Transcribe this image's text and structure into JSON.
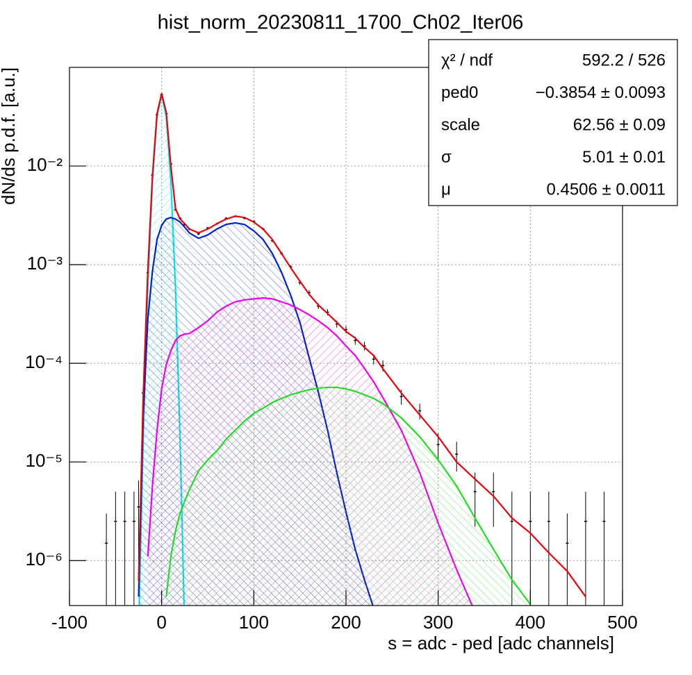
{
  "chart_data": {
    "type": "line",
    "title": "hist_norm_20230811_1700_Ch02_Iter06",
    "x_label": "s = adc - ped [adc channels]",
    "y_label": "dN/ds p.d.f. [a.u.]",
    "log_y": true,
    "grid": true,
    "xlim": [
      -100,
      500
    ],
    "xticks": [
      -100,
      0,
      100,
      200,
      300,
      400,
      500
    ],
    "ylim": [
      3.5e-07,
      0.1
    ],
    "yticks": [
      {
        "value": 1e-06,
        "label": "10⁻⁶"
      },
      {
        "value": 1e-05,
        "label": "10⁻⁵"
      },
      {
        "value": 0.0001,
        "label": "10⁻⁴"
      },
      {
        "value": 0.001,
        "label": "10⁻³"
      },
      {
        "value": 0.01,
        "label": "10⁻²"
      }
    ],
    "x": [
      -60,
      -50,
      -40,
      -30,
      -25,
      -20,
      -15,
      -10,
      -5,
      0,
      5,
      10,
      15,
      20,
      25,
      30,
      40,
      50,
      60,
      70,
      80,
      90,
      100,
      110,
      120,
      130,
      140,
      150,
      160,
      170,
      180,
      190,
      200,
      210,
      220,
      230,
      240,
      260,
      280,
      300,
      320,
      340,
      360,
      380,
      400,
      420,
      440,
      460,
      480
    ],
    "series": [
      {
        "style": "data",
        "color": "#000000",
        "values": [
          1.5e-06,
          2.5e-06,
          2.5e-06,
          2.5e-06,
          3.5e-06,
          5e-05,
          0.00083,
          0.0081,
          0.033,
          0.053,
          0.034,
          0.0105,
          0.0036,
          0.00295,
          0.00255,
          0.0023,
          0.00205,
          0.00235,
          0.0026,
          0.00295,
          0.0031,
          0.00295,
          0.00275,
          0.0023,
          0.00175,
          0.0013,
          0.00095,
          0.00066,
          0.00052,
          0.00038,
          0.00033,
          0.00025,
          0.00022,
          0.00017,
          0.00015,
          0.00011,
          9.5e-05,
          4.6e-05,
          3.3e-05,
          1.5e-05,
          1.2e-05,
          5e-06,
          5e-06,
          2.5e-06,
          2.5e-06,
          2.5e-06,
          1.5e-06,
          2.5e-06,
          2.5e-06
        ],
        "errors": [
          1.5e-06,
          2.5e-06,
          2.5e-06,
          2.5e-06,
          3e-06,
          8e-06,
          3e-05,
          0.00015,
          0.0003,
          0.0004,
          0.0003,
          0.00016,
          9e-05,
          8e-05,
          7e-05,
          7e-05,
          6e-05,
          7e-05,
          7e-05,
          8e-05,
          8e-05,
          8e-05,
          8e-05,
          7e-05,
          6e-05,
          5e-05,
          4e-05,
          3.5e-05,
          3e-05,
          2.5e-05,
          2.4e-05,
          2e-05,
          1.9e-05,
          1.6e-05,
          1.5e-05,
          1.3e-05,
          1.2e-05,
          8e-06,
          6e-06,
          4.5e-06,
          4e-06,
          2.8e-06,
          2.8e-06,
          2.5e-06,
          2.5e-06,
          2.5e-06,
          1.5e-06,
          2.5e-06,
          2.5e-06
        ]
      },
      {
        "style": "component",
        "color": "#00e5ee",
        "values": [
          null,
          null,
          null,
          null,
          1.9e-07,
          1.7e-05,
          0.00058,
          0.007,
          0.032,
          0.052,
          0.032,
          0.007,
          0.00058,
          1.7e-05,
          1.9e-07,
          null,
          null,
          null,
          null,
          null,
          null,
          null,
          null,
          null,
          null,
          null,
          null,
          null,
          null,
          null,
          null,
          null,
          null,
          null,
          null,
          null,
          null,
          null,
          null,
          null,
          null,
          null,
          null,
          null,
          null,
          null,
          null,
          null,
          null
        ]
      },
      {
        "style": "component",
        "color": "#0022cc",
        "values": [
          null,
          null,
          null,
          null,
          4.3e-07,
          2.9e-05,
          0.00028,
          0.00086,
          0.0018,
          0.0025,
          0.0029,
          0.003,
          0.0029,
          0.0027,
          0.0024,
          0.0021,
          0.00185,
          0.002,
          0.0023,
          0.00256,
          0.00265,
          0.00255,
          0.0022,
          0.0018,
          0.0013,
          0.00084,
          0.00049,
          0.00026,
          0.000114,
          5.1e-05,
          2.1e-05,
          7.8e-06,
          3.1e-06,
          1.3e-06,
          6.4e-07,
          3.3e-07,
          null,
          null,
          null,
          null,
          null,
          null,
          null,
          null,
          null,
          null,
          null,
          null,
          null
        ]
      },
      {
        "style": "component",
        "color": "#ee00ee",
        "values": [
          null,
          null,
          null,
          null,
          null,
          null,
          1.1e-06,
          5.7e-06,
          2.1e-05,
          5.5e-05,
          9.7e-05,
          0.000134,
          0.00017,
          0.00019,
          0.000198,
          0.0002,
          0.00023,
          0.00027,
          0.00033,
          0.00038,
          0.00042,
          0.00044,
          0.00045,
          0.00046,
          0.00045,
          0.00042,
          0.00039,
          0.00035,
          0.00031,
          0.00027,
          0.00023,
          0.00019,
          0.00015,
          0.00012,
          8.9e-05,
          6.5e-05,
          4.5e-05,
          2.1e-05,
          7.8e-06,
          2.4e-06,
          8.1e-07,
          3e-07,
          null,
          null,
          null,
          null,
          null,
          null,
          null
        ]
      },
      {
        "style": "component",
        "color": "#22dd22",
        "values": [
          null,
          null,
          null,
          null,
          null,
          null,
          null,
          null,
          null,
          null,
          4.3e-07,
          1.1e-06,
          2e-06,
          3e-06,
          4e-06,
          5.2e-06,
          8.1e-06,
          1.05e-05,
          1.3e-05,
          1.7e-05,
          2.1e-05,
          2.6e-05,
          3.1e-05,
          3.5e-05,
          4e-05,
          4.4e-05,
          4.8e-05,
          5.1e-05,
          5.4e-05,
          5.6e-05,
          5.7e-05,
          5.7e-05,
          5.5e-05,
          5.2e-05,
          4.8e-05,
          4.4e-05,
          3.9e-05,
          2.8e-05,
          1.8e-05,
          1.05e-05,
          5.7e-06,
          2.7e-06,
          1.3e-06,
          6.4e-07,
          3.6e-07,
          null,
          null,
          null,
          null
        ]
      },
      {
        "style": "fit",
        "color": "#e8000b",
        "values": [
          null,
          null,
          null,
          null,
          6.2e-07,
          4.6e-05,
          0.00086,
          0.0079,
          0.034,
          0.054,
          0.035,
          0.01,
          0.0037,
          0.0029,
          0.0026,
          0.0023,
          0.0021,
          0.0023,
          0.0026,
          0.0029,
          0.0031,
          0.003,
          0.0027,
          0.0023,
          0.0018,
          0.0013,
          0.00093,
          0.00068,
          0.0005,
          0.00039,
          0.00032,
          0.00026,
          0.00021,
          0.00018,
          0.000145,
          0.00012,
          8.8e-05,
          5e-05,
          3e-05,
          1.8e-05,
          1e-05,
          6.7e-06,
          4.5e-06,
          2.7e-06,
          1.9e-06,
          1.2e-06,
          7.8e-07,
          4.3e-07,
          null
        ]
      }
    ],
    "stats": [
      {
        "name": "χ² / ndf",
        "value": "592.2 / 526"
      },
      {
        "name": "ped0",
        "value": "−0.3854 ± 0.0093"
      },
      {
        "name": "scale",
        "value": "62.56 ± 0.09"
      },
      {
        "name": "σ",
        "value": "5.01 ± 0.01"
      },
      {
        "name": "μ",
        "value": "0.4506 ± 0.0011"
      }
    ]
  }
}
